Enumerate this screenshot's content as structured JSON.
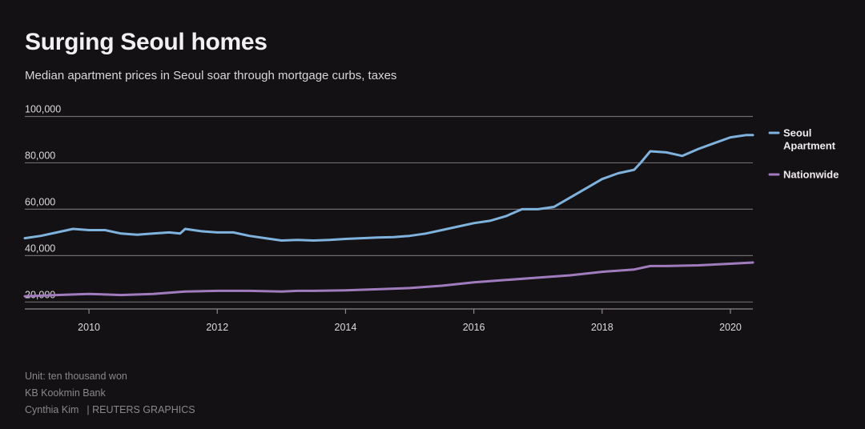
{
  "header": {
    "title": "Surging Seoul homes",
    "subtitle": "Median apartment prices in Seoul soar through mortgage curbs, taxes"
  },
  "footer": {
    "unit": "Unit: ten thousand won",
    "source": "KB Kookmin Bank",
    "author": "Cynthia Kim",
    "credit": "| REUTERS GRAPHICS"
  },
  "colors": {
    "background": "#141114",
    "grid": "#6e6b6e",
    "tick_text": "#dcdadc",
    "seoul": "#7fb2dc",
    "nationwide": "#a07cbe"
  },
  "chart_data": {
    "type": "line",
    "title": "Surging Seoul homes",
    "xlabel": "",
    "ylabel": "",
    "x_ticks": [
      "2010",
      "2012",
      "2014",
      "2016",
      "2018",
      "2020"
    ],
    "y_ticks": [
      "20,000",
      "40,000",
      "60,000",
      "80,000",
      "100,000"
    ],
    "xlim": [
      2009.0,
      2020.35
    ],
    "ylim": [
      17000,
      100000
    ],
    "grid": true,
    "legend_position": "right",
    "series": [
      {
        "name": "Seoul Apartment",
        "legend_lines": [
          "Seoul",
          "Apartment"
        ],
        "color": "#7fb2dc",
        "x": [
          2009.0,
          2009.25,
          2009.5,
          2009.75,
          2010.0,
          2010.25,
          2010.5,
          2010.75,
          2011.0,
          2011.25,
          2011.42,
          2011.5,
          2011.75,
          2012.0,
          2012.25,
          2012.5,
          2012.75,
          2013.0,
          2013.25,
          2013.5,
          2013.75,
          2014.0,
          2014.25,
          2014.5,
          2014.75,
          2015.0,
          2015.25,
          2015.5,
          2015.75,
          2016.0,
          2016.25,
          2016.5,
          2016.75,
          2017.0,
          2017.25,
          2017.5,
          2017.75,
          2018.0,
          2018.25,
          2018.5,
          2018.6,
          2018.75,
          2019.0,
          2019.25,
          2019.5,
          2019.75,
          2020.0,
          2020.25,
          2020.35
        ],
        "y": [
          47500,
          48500,
          50000,
          51500,
          51000,
          51000,
          49500,
          49000,
          49500,
          50000,
          49500,
          51500,
          50500,
          50000,
          50000,
          48500,
          47500,
          46500,
          46800,
          46500,
          46800,
          47200,
          47500,
          47800,
          48000,
          48500,
          49500,
          51000,
          52500,
          54000,
          55000,
          57000,
          60000,
          60000,
          61000,
          65000,
          69000,
          73000,
          75500,
          77000,
          80000,
          85000,
          84500,
          83000,
          86000,
          88500,
          91000,
          92000,
          92000
        ]
      },
      {
        "name": "Nationwide",
        "legend_lines": [
          "Nationwide"
        ],
        "color": "#a07cbe",
        "x": [
          2009.0,
          2009.5,
          2010.0,
          2010.5,
          2011.0,
          2011.5,
          2012.0,
          2012.5,
          2013.0,
          2013.25,
          2013.5,
          2014.0,
          2014.5,
          2015.0,
          2015.5,
          2016.0,
          2016.5,
          2017.0,
          2017.5,
          2018.0,
          2018.5,
          2018.75,
          2019.0,
          2019.5,
          2020.0,
          2020.35
        ],
        "y": [
          22500,
          23000,
          23500,
          23000,
          23500,
          24500,
          24800,
          24800,
          24500,
          24800,
          24800,
          25000,
          25500,
          26000,
          27000,
          28500,
          29500,
          30500,
          31500,
          33000,
          34000,
          35500,
          35500,
          35800,
          36500,
          37000
        ]
      }
    ]
  }
}
